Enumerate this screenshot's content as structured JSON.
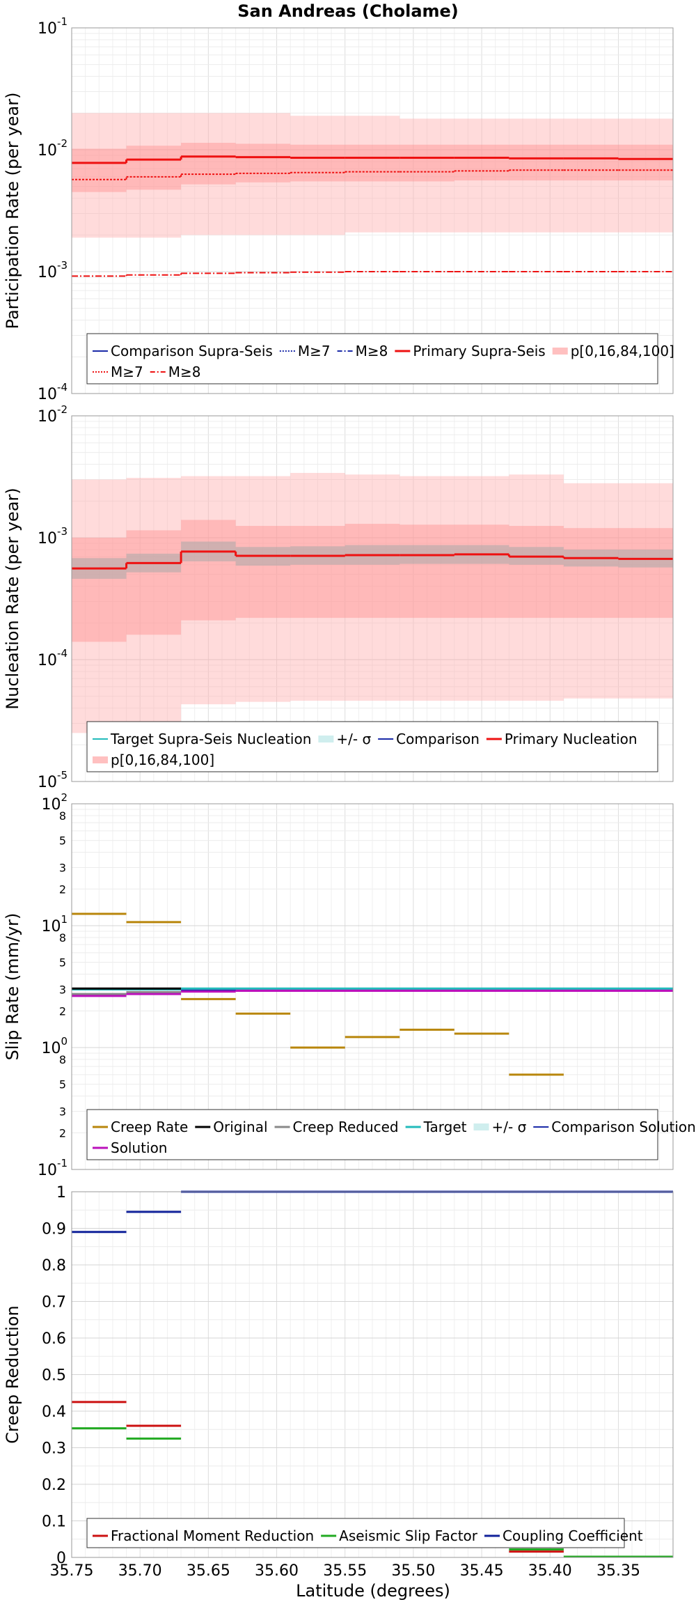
{
  "title": "San Andreas (Cholame)",
  "xlabel": "Latitude (degrees)",
  "chart_data": [
    {
      "type": "line",
      "ylabel": "Participation Rate (per year)",
      "yscale": "log",
      "ylim": [
        0.0001,
        0.1
      ],
      "xlim": [
        35.75,
        35.31
      ],
      "x_edges": [
        35.75,
        35.71,
        35.67,
        35.63,
        35.59,
        35.55,
        35.51,
        35.47,
        35.43,
        35.39,
        35.35,
        35.31
      ],
      "series": [
        {
          "name": "Primary Supra-Seis",
          "color": "#ee1111",
          "width": 3,
          "dash": "",
          "values": [
            0.0078,
            0.0083,
            0.0088,
            0.0087,
            0.0086,
            0.0086,
            0.0086,
            0.0086,
            0.0085,
            0.0085,
            0.0084
          ]
        },
        {
          "name": "M≥7",
          "color": "#ee1111",
          "width": 2,
          "dash": "3,2",
          "values": [
            0.0057,
            0.006,
            0.0063,
            0.0064,
            0.0065,
            0.0066,
            0.0066,
            0.0067,
            0.0068,
            0.0068,
            0.0068
          ]
        },
        {
          "name": "M≥8",
          "color": "#ee1111",
          "width": 2,
          "dash": "9,3,2,3",
          "values": [
            0.00092,
            0.00094,
            0.00097,
            0.00098,
            0.00099,
            0.001,
            0.001,
            0.001,
            0.001,
            0.001,
            0.001
          ]
        }
      ],
      "bands": [
        {
          "name": "p[0,16,84,100]",
          "color": "#ffb0b0",
          "opacity": 0.45,
          "low": [
            0.0019,
            0.0019,
            0.002,
            0.002,
            0.002,
            0.0021,
            0.0021,
            0.0021,
            0.0021,
            0.0021,
            0.0021
          ],
          "high": [
            0.02,
            0.02,
            0.02,
            0.02,
            0.019,
            0.019,
            0.018,
            0.018,
            0.018,
            0.018,
            0.018
          ]
        },
        {
          "name": "",
          "color": "#ff9090",
          "opacity": 0.45,
          "low": [
            0.0045,
            0.0047,
            0.0052,
            0.0054,
            0.0055,
            0.0055,
            0.0055,
            0.0056,
            0.0056,
            0.0056,
            0.0056
          ],
          "high": [
            0.0102,
            0.0108,
            0.0114,
            0.0112,
            0.011,
            0.011,
            0.011,
            0.011,
            0.011,
            0.011,
            0.011
          ]
        }
      ],
      "legend": {
        "rows": [
          [
            {
              "label": "Comparison Supra-Seis",
              "color": "#1a2aa8",
              "dash": "",
              "width": 2
            },
            {
              "label": "M≥7",
              "color": "#1a2aa8",
              "dash": "2,2",
              "width": 2
            },
            {
              "label": "M≥8",
              "color": "#1a2aa8",
              "dash": "7,3,2,3",
              "width": 2
            },
            {
              "label": "Primary Supra-Seis",
              "color": "#ee1111",
              "dash": "",
              "width": 3
            },
            {
              "label": "p[0,16,84,100]",
              "color": "#ffc0c0",
              "dash": "",
              "width": 10
            }
          ],
          [
            {
              "label": "M≥7",
              "color": "#ee1111",
              "dash": "2,2",
              "width": 2
            },
            {
              "label": "M≥8",
              "color": "#ee1111",
              "dash": "7,3,2,3",
              "width": 2
            }
          ]
        ]
      }
    },
    {
      "type": "line",
      "ylabel": "Nucleation Rate (per year)",
      "yscale": "log",
      "ylim": [
        1e-05,
        0.01
      ],
      "xlim": [
        35.75,
        35.31
      ],
      "x_edges": [
        35.75,
        35.71,
        35.67,
        35.63,
        35.59,
        35.55,
        35.51,
        35.47,
        35.43,
        35.39,
        35.35,
        35.31
      ],
      "series": [
        {
          "name": "Primary Nucleation",
          "color": "#ee1111",
          "width": 3,
          "dash": "",
          "values": [
            0.00056,
            0.00062,
            0.00077,
            0.00071,
            0.00071,
            0.00072,
            0.00072,
            0.00073,
            0.0007,
            0.00068,
            0.00067
          ]
        }
      ],
      "bands": [
        {
          "name": "p[0,16,84,100]",
          "color": "#ffb0b0",
          "opacity": 0.45,
          "low": [
            2.5e-05,
            2.8e-05,
            4.3e-05,
            4.5e-05,
            4.6e-05,
            4.6e-05,
            4.6e-05,
            4.6e-05,
            4.6e-05,
            4.8e-05,
            4.8e-05
          ],
          "high": [
            0.003,
            0.0031,
            0.0032,
            0.0032,
            0.0034,
            0.0033,
            0.0032,
            0.0032,
            0.0033,
            0.0028,
            0.0028
          ]
        },
        {
          "name": "",
          "color": "#ff9090",
          "opacity": 0.45,
          "low": [
            0.00014,
            0.00016,
            0.00021,
            0.00022,
            0.00022,
            0.00022,
            0.00022,
            0.00022,
            0.00022,
            0.00022,
            0.00022
          ],
          "high": [
            0.001,
            0.00115,
            0.0014,
            0.00125,
            0.00125,
            0.0013,
            0.00128,
            0.00128,
            0.00125,
            0.0012,
            0.0012
          ]
        },
        {
          "name": "Target Supra-Seis Nucleation",
          "color": "#a9a9a9",
          "opacity": 0.55,
          "low": [
            0.00046,
            0.00052,
            0.00064,
            0.00059,
            0.0006,
            0.0006,
            0.00061,
            0.00061,
            0.0006,
            0.00058,
            0.00057
          ],
          "high": [
            0.00068,
            0.00074,
            0.00093,
            0.00084,
            0.00085,
            0.00087,
            0.00087,
            0.00087,
            0.00084,
            0.0008,
            0.0008
          ]
        }
      ],
      "legend": {
        "rows": [
          [
            {
              "label": "Target Supra-Seis Nucleation",
              "color": "#22bbbb",
              "dash": "",
              "width": 2
            },
            {
              "label": "+/- σ",
              "color": "#cfeeee",
              "dash": "",
              "width": 10
            },
            {
              "label": "Comparison",
              "color": "#1a2aa8",
              "dash": "",
              "width": 2
            },
            {
              "label": "Primary Nucleation",
              "color": "#ee1111",
              "dash": "",
              "width": 3
            }
          ],
          [
            {
              "label": "p[0,16,84,100]",
              "color": "#ffc0c0",
              "dash": "",
              "width": 10
            }
          ]
        ]
      }
    },
    {
      "type": "line",
      "ylabel": "Slip Rate (mm/yr)",
      "yscale": "log",
      "ylim": [
        0.1,
        100
      ],
      "xlim": [
        35.75,
        35.31
      ],
      "x_edges": [
        35.75,
        35.71,
        35.67,
        35.63,
        35.59,
        35.55,
        35.51,
        35.47,
        35.43,
        35.39,
        35.35,
        35.31
      ],
      "series": [
        {
          "name": "Creep Rate",
          "color": "#b8860b",
          "width": 3,
          "dash": "",
          "segments": [
            [
              35.75,
              35.71,
              12.5
            ],
            [
              35.71,
              35.67,
              10.7
            ],
            [
              35.67,
              35.63,
              2.5
            ],
            [
              35.63,
              35.59,
              1.9
            ],
            [
              35.59,
              35.55,
              1.0
            ],
            [
              35.55,
              35.51,
              1.22
            ],
            [
              35.51,
              35.47,
              1.4
            ],
            [
              35.47,
              35.43,
              1.3
            ],
            [
              35.43,
              35.39,
              0.6
            ]
          ]
        },
        {
          "name": "Target",
          "color": "#22bbbb",
          "width": 3,
          "dash": "",
          "segments": [
            [
              35.75,
              35.71,
              3.0
            ],
            [
              35.71,
              35.67,
              3.0
            ],
            [
              35.67,
              35.31,
              3.05
            ]
          ]
        },
        {
          "name": "Original",
          "color": "#000000",
          "width": 3,
          "dash": "",
          "segments": [
            [
              35.75,
              35.71,
              3.05
            ],
            [
              35.71,
              35.67,
              3.05
            ]
          ]
        },
        {
          "name": "Creep Reduced",
          "color": "#888888",
          "width": 3,
          "dash": "",
          "segments": [
            [
              35.75,
              35.71,
              2.75
            ],
            [
              35.71,
              35.67,
              2.85
            ]
          ]
        },
        {
          "name": "Comparison Solution",
          "color": "#1a2aa8",
          "width": 2,
          "dash": "",
          "segments": [
            [
              35.67,
              35.31,
              2.95
            ]
          ]
        },
        {
          "name": "Solution",
          "color": "#bb11bb",
          "width": 3,
          "dash": "",
          "segments": [
            [
              35.75,
              35.71,
              2.65
            ],
            [
              35.71,
              35.67,
              2.75
            ],
            [
              35.67,
              35.63,
              2.88
            ],
            [
              35.63,
              35.31,
              2.92
            ]
          ]
        }
      ],
      "bands": [],
      "legend": {
        "rows": [
          [
            {
              "label": "Creep Rate",
              "color": "#b8860b",
              "dash": "",
              "width": 3
            },
            {
              "label": "Original",
              "color": "#000000",
              "dash": "",
              "width": 3
            },
            {
              "label": "Creep Reduced",
              "color": "#888888",
              "dash": "",
              "width": 3
            },
            {
              "label": "Target",
              "color": "#22bbbb",
              "dash": "",
              "width": 3
            },
            {
              "label": "+/- σ",
              "color": "#cfeeee",
              "dash": "",
              "width": 10
            },
            {
              "label": "Comparison Solution",
              "color": "#1a2aa8",
              "dash": "",
              "width": 2
            }
          ],
          [
            {
              "label": "Solution",
              "color": "#bb11bb",
              "dash": "",
              "width": 3
            }
          ]
        ]
      }
    },
    {
      "type": "line",
      "ylabel": "Creep Reduction",
      "yscale": "linear",
      "ylim": [
        0,
        1
      ],
      "xlim": [
        35.75,
        35.31
      ],
      "x_edges": [
        35.75,
        35.71,
        35.67,
        35.63,
        35.59,
        35.55,
        35.51,
        35.47,
        35.43,
        35.39,
        35.35,
        35.31
      ],
      "series": [
        {
          "name": "Fractional Moment Reduction",
          "color": "#cc1111",
          "width": 3,
          "dash": "",
          "segments": [
            [
              35.75,
              35.71,
              0.425
            ],
            [
              35.71,
              35.67,
              0.36
            ],
            [
              35.43,
              35.39,
              0.016
            ]
          ]
        },
        {
          "name": "Aseismic Slip Factor",
          "color": "#22aa22",
          "width": 3,
          "dash": "",
          "segments": [
            [
              35.75,
              35.71,
              0.353
            ],
            [
              35.71,
              35.67,
              0.325
            ],
            [
              35.67,
              35.63,
              0.08
            ],
            [
              35.59,
              35.55,
              0.034
            ],
            [
              35.43,
              35.39,
              0.022
            ],
            [
              35.39,
              35.31,
              0.002
            ]
          ]
        },
        {
          "name": "Coupling Coefficient",
          "color": "#11229a",
          "width": 3,
          "dash": "",
          "segments": [
            [
              35.75,
              35.71,
              0.89
            ],
            [
              35.71,
              35.67,
              0.945
            ],
            [
              35.67,
              35.31,
              1.0
            ]
          ]
        }
      ],
      "bands": [],
      "legend": {
        "rows": [
          [
            {
              "label": "Fractional Moment Reduction",
              "color": "#cc1111",
              "dash": "",
              "width": 3
            },
            {
              "label": "Aseismic Slip Factor",
              "color": "#22aa22",
              "dash": "",
              "width": 3
            },
            {
              "label": "Coupling Coefficient",
              "color": "#11229a",
              "dash": "",
              "width": 3
            }
          ]
        ]
      }
    }
  ],
  "xticks": [
    "35.75",
    "35.70",
    "35.65",
    "35.60",
    "35.55",
    "35.50",
    "35.45",
    "35.40",
    "35.35"
  ]
}
